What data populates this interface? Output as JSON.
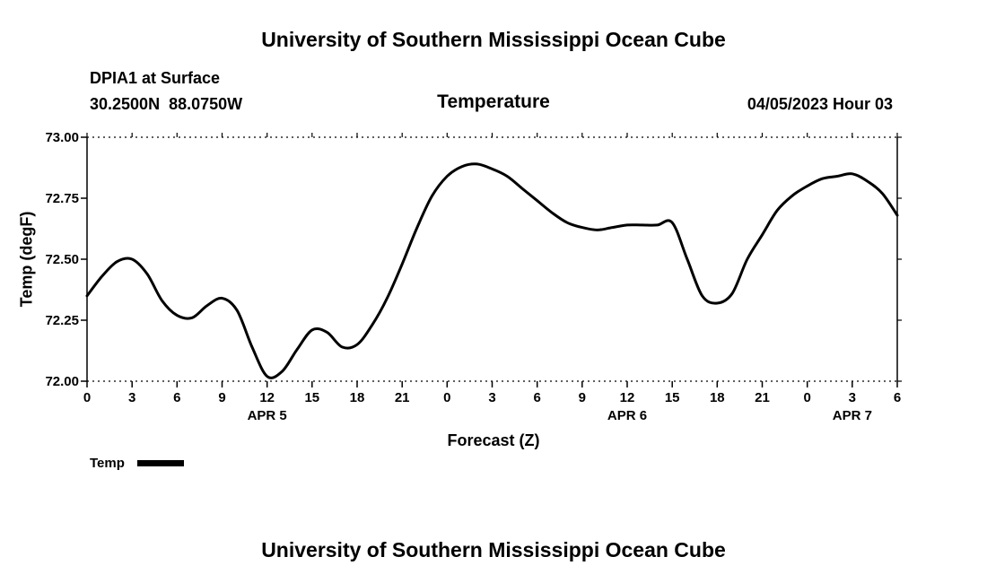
{
  "page": {
    "top_title": "University of Southern Mississippi Ocean Cube",
    "bottom_title": "University of Southern Mississippi Ocean Cube",
    "background": "#ffffff",
    "text_color": "#000000"
  },
  "header": {
    "station": "DPIA1 at Surface",
    "coords": "30.2500N  88.0750W",
    "title": "Temperature",
    "run": "04/05/2023 Hour 03"
  },
  "legend": {
    "label": "Temp",
    "color": "#000000"
  },
  "chart_data": {
    "type": "line",
    "title": "Temperature",
    "xlabel": "Forecast (Z)",
    "ylabel": "Temp (degF)",
    "xlim": [
      0,
      54
    ],
    "ylim": [
      72.0,
      73.0
    ],
    "grid": "dotted top and bottom frame lines, no interior gridlines",
    "legend_position": "below-left",
    "line_color": "#000000",
    "yticks": [
      {
        "value": 72.0,
        "label": "72.00"
      },
      {
        "value": 72.25,
        "label": "72.25"
      },
      {
        "value": 72.5,
        "label": "72.50"
      },
      {
        "value": 72.75,
        "label": "72.75"
      },
      {
        "value": 73.0,
        "label": "73.00"
      }
    ],
    "xticks": [
      {
        "hour": 0,
        "label": "0"
      },
      {
        "hour": 3,
        "label": "3"
      },
      {
        "hour": 6,
        "label": "6"
      },
      {
        "hour": 9,
        "label": "9"
      },
      {
        "hour": 12,
        "label": "12"
      },
      {
        "hour": 15,
        "label": "15"
      },
      {
        "hour": 18,
        "label": "18"
      },
      {
        "hour": 21,
        "label": "21"
      },
      {
        "hour": 24,
        "label": "0"
      },
      {
        "hour": 27,
        "label": "3"
      },
      {
        "hour": 30,
        "label": "6"
      },
      {
        "hour": 33,
        "label": "9"
      },
      {
        "hour": 36,
        "label": "12"
      },
      {
        "hour": 39,
        "label": "15"
      },
      {
        "hour": 42,
        "label": "18"
      },
      {
        "hour": 45,
        "label": "21"
      },
      {
        "hour": 48,
        "label": "0"
      },
      {
        "hour": 51,
        "label": "3"
      },
      {
        "hour": 54,
        "label": "6"
      }
    ],
    "day_labels": [
      {
        "hour": 12,
        "label": "APR 5"
      },
      {
        "hour": 36,
        "label": "APR 6"
      },
      {
        "hour": 51,
        "label": "APR 7"
      }
    ],
    "series": [
      {
        "name": "Temp",
        "color": "#000000",
        "x": [
          0,
          1,
          2,
          3,
          4,
          5,
          6,
          7,
          8,
          9,
          10,
          11,
          12,
          13,
          14,
          15,
          16,
          17,
          18,
          19,
          20,
          21,
          22,
          23,
          24,
          25,
          26,
          27,
          28,
          29,
          30,
          31,
          32,
          33,
          34,
          35,
          36,
          37,
          38,
          39,
          40,
          41,
          42,
          43,
          44,
          45,
          46,
          47,
          48,
          49,
          50,
          51,
          52,
          53,
          54
        ],
        "values": [
          72.35,
          72.43,
          72.49,
          72.5,
          72.44,
          72.33,
          72.27,
          72.26,
          72.31,
          72.34,
          72.29,
          72.14,
          72.02,
          72.04,
          72.13,
          72.21,
          72.2,
          72.14,
          72.15,
          72.23,
          72.34,
          72.48,
          72.63,
          72.76,
          72.84,
          72.88,
          72.89,
          72.87,
          72.84,
          72.79,
          72.74,
          72.69,
          72.65,
          72.63,
          72.62,
          72.63,
          72.64,
          72.64,
          72.64,
          72.65,
          72.5,
          72.35,
          72.32,
          72.36,
          72.5,
          72.6,
          72.7,
          72.76,
          72.8,
          72.83,
          72.84,
          72.85,
          72.82,
          72.77,
          72.68
        ]
      }
    ]
  }
}
